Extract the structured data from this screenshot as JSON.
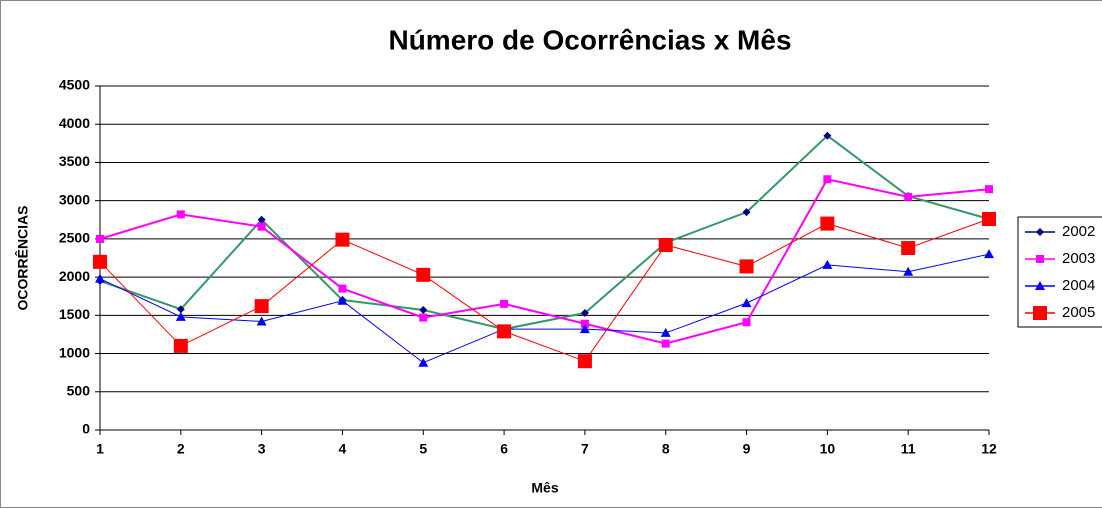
{
  "chart_data": {
    "type": "line",
    "title": "Número de Ocorrências x Mês",
    "x_label": "Mês",
    "y_label": "OCORRÊNCIAS",
    "x": [
      1,
      2,
      3,
      4,
      5,
      6,
      7,
      8,
      9,
      10,
      11,
      12
    ],
    "xlim": [
      1,
      12
    ],
    "xticks": [
      1,
      2,
      3,
      4,
      5,
      6,
      7,
      8,
      9,
      10,
      11,
      12
    ],
    "ylim": [
      0,
      4500
    ],
    "yticks": [
      0,
      500,
      1000,
      1500,
      2000,
      2500,
      3000,
      3500,
      4000,
      4500
    ],
    "grid": true,
    "legend": "right",
    "series": [
      {
        "name": "2002",
        "color": "#000080",
        "line_color": "#339966",
        "marker": "diamond",
        "values": [
          1950,
          1580,
          2750,
          1700,
          1570,
          1320,
          1530,
          2450,
          2850,
          3850,
          3060,
          2760
        ]
      },
      {
        "name": "2003",
        "color": "#ff00ff",
        "marker": "square",
        "values": [
          2500,
          2820,
          2660,
          1850,
          1470,
          1650,
          1390,
          1130,
          1410,
          3280,
          3050,
          3150
        ]
      },
      {
        "name": "2004",
        "color": "#0000ff",
        "marker": "triangle",
        "values": [
          1980,
          1480,
          1420,
          1690,
          880,
          1320,
          1320,
          1270,
          1660,
          2160,
          2070,
          2300
        ]
      },
      {
        "name": "2005",
        "color": "#ff0000",
        "marker": "bigsquare",
        "values": [
          2200,
          1100,
          1620,
          2490,
          2030,
          1290,
          900,
          2420,
          2140,
          2700,
          2380,
          2760
        ]
      }
    ]
  }
}
